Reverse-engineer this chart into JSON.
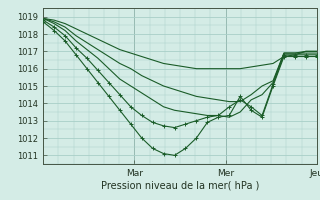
{
  "title": "Pression niveau de la mer( hPa )",
  "ylim": [
    1010.5,
    1019.5
  ],
  "yticks": [
    1011,
    1012,
    1013,
    1014,
    1015,
    1016,
    1017,
    1018,
    1019
  ],
  "bg_color": "#d4ece6",
  "grid_color": "#a8cfc8",
  "line_color": "#1a5c28",
  "day_labels": [
    "Mar",
    "Mer",
    "Jeu"
  ],
  "series": [
    {
      "x": [
        0,
        0.04,
        0.08,
        0.12,
        0.16,
        0.2,
        0.24,
        0.28,
        0.32,
        0.36,
        0.4,
        0.44,
        0.48,
        0.52,
        0.56,
        0.6,
        0.64,
        0.68,
        0.72,
        0.76,
        0.8,
        0.84,
        0.88,
        0.92,
        0.96,
        1.0
      ],
      "y": [
        1018.7,
        1018.2,
        1017.6,
        1016.8,
        1016.0,
        1015.2,
        1014.4,
        1013.6,
        1012.8,
        1012.0,
        1011.4,
        1011.1,
        1011.0,
        1011.4,
        1012.0,
        1012.9,
        1013.2,
        1013.3,
        1014.4,
        1013.6,
        1013.2,
        1015.0,
        1016.7,
        1016.7,
        1016.7,
        1016.7
      ],
      "marker": true
    },
    {
      "x": [
        0,
        0.04,
        0.08,
        0.12,
        0.16,
        0.2,
        0.24,
        0.28,
        0.32,
        0.36,
        0.4,
        0.44,
        0.48,
        0.52,
        0.56,
        0.6,
        0.64,
        0.68,
        0.72,
        0.76,
        0.8,
        0.84,
        0.88,
        0.92,
        0.96,
        1.0
      ],
      "y": [
        1018.8,
        1018.4,
        1017.9,
        1017.2,
        1016.6,
        1015.9,
        1015.2,
        1014.5,
        1013.8,
        1013.3,
        1012.9,
        1012.7,
        1012.6,
        1012.8,
        1013.0,
        1013.2,
        1013.3,
        1013.8,
        1014.2,
        1013.8,
        1013.3,
        1015.1,
        1016.8,
        1016.8,
        1016.8,
        1016.8
      ],
      "marker": true
    },
    {
      "x": [
        0,
        0.04,
        0.08,
        0.12,
        0.16,
        0.2,
        0.24,
        0.28,
        0.32,
        0.36,
        0.4,
        0.44,
        0.48,
        0.52,
        0.56,
        0.6,
        0.64,
        0.68,
        0.72,
        0.76,
        0.8,
        0.84,
        0.88,
        0.92,
        0.96,
        1.0
      ],
      "y": [
        1018.9,
        1018.6,
        1018.2,
        1017.6,
        1017.1,
        1016.6,
        1016.0,
        1015.4,
        1015.0,
        1014.6,
        1014.2,
        1013.8,
        1013.6,
        1013.5,
        1013.4,
        1013.3,
        1013.3,
        1013.2,
        1013.5,
        1014.2,
        1014.5,
        1015.2,
        1016.9,
        1016.9,
        1016.9,
        1016.9
      ],
      "marker": false
    },
    {
      "x": [
        0,
        0.04,
        0.08,
        0.12,
        0.16,
        0.2,
        0.24,
        0.28,
        0.32,
        0.36,
        0.4,
        0.44,
        0.48,
        0.52,
        0.56,
        0.6,
        0.64,
        0.68,
        0.72,
        0.76,
        0.8,
        0.84,
        0.88,
        0.92,
        0.96,
        1.0
      ],
      "y": [
        1018.9,
        1018.7,
        1018.4,
        1017.9,
        1017.5,
        1017.1,
        1016.7,
        1016.3,
        1016.0,
        1015.6,
        1015.3,
        1015.0,
        1014.8,
        1014.6,
        1014.4,
        1014.3,
        1014.2,
        1014.1,
        1014.1,
        1014.5,
        1015.0,
        1015.3,
        1016.9,
        1016.9,
        1017.0,
        1017.0
      ],
      "marker": false
    },
    {
      "x": [
        0,
        0.04,
        0.08,
        0.12,
        0.16,
        0.2,
        0.24,
        0.28,
        0.32,
        0.36,
        0.4,
        0.44,
        0.48,
        0.52,
        0.56,
        0.6,
        0.64,
        0.68,
        0.72,
        0.76,
        0.8,
        0.84,
        0.88,
        0.92,
        0.96,
        1.0
      ],
      "y": [
        1018.9,
        1018.8,
        1018.6,
        1018.3,
        1018.0,
        1017.7,
        1017.4,
        1017.1,
        1016.9,
        1016.7,
        1016.5,
        1016.3,
        1016.2,
        1016.1,
        1016.0,
        1016.0,
        1016.0,
        1016.0,
        1016.0,
        1016.1,
        1016.2,
        1016.3,
        1016.7,
        1016.8,
        1017.0,
        1017.0
      ],
      "marker": false
    }
  ]
}
